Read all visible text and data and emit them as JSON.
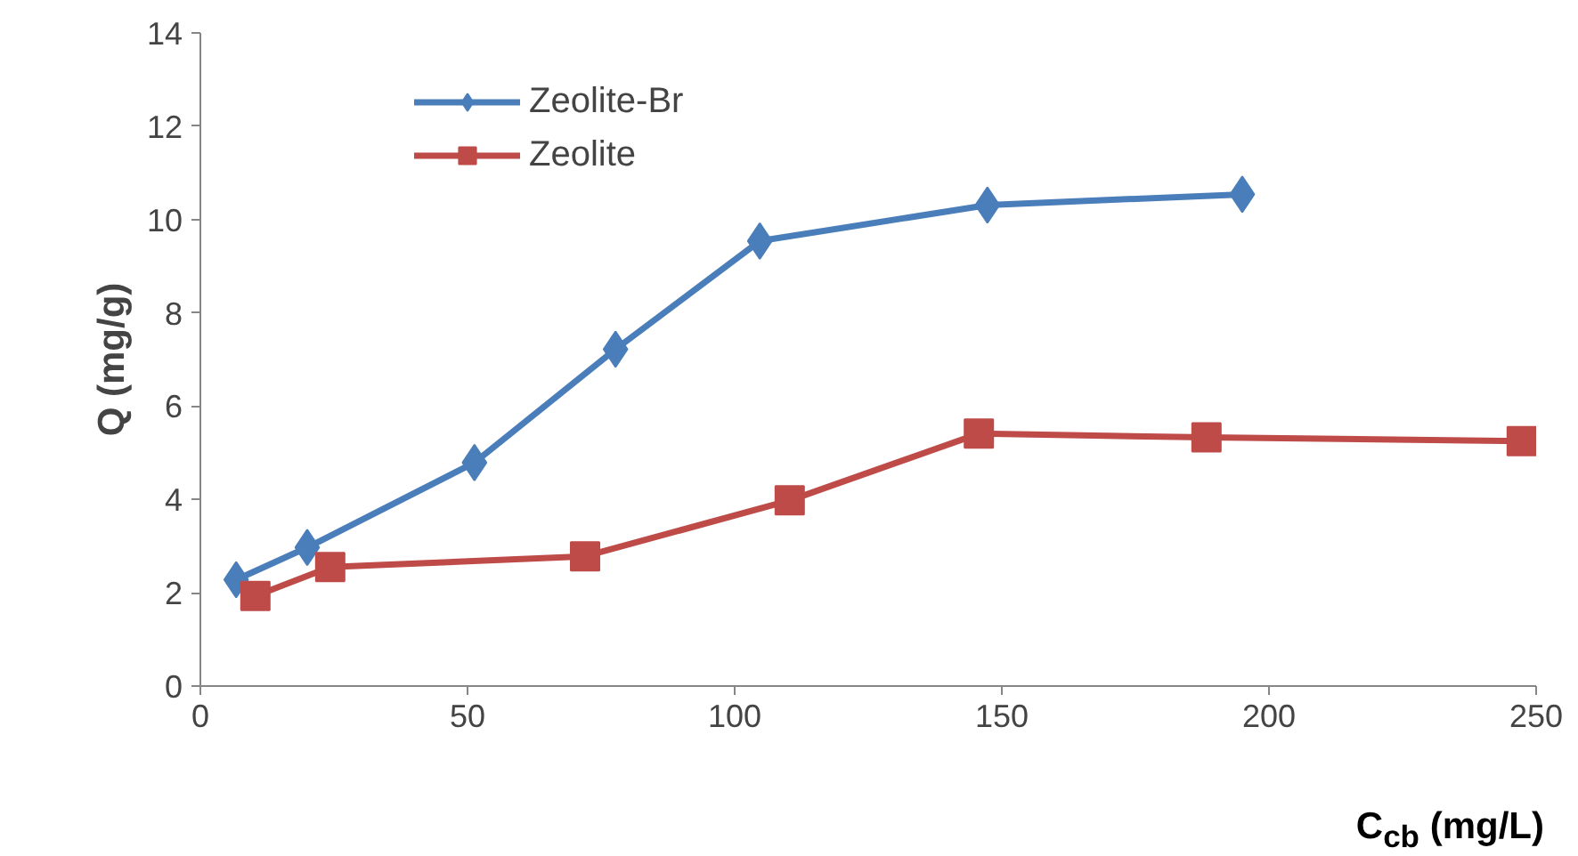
{
  "chart_data": {
    "type": "line",
    "xlabel": "C$_{cb}$ (mg/L)",
    "ylabel": "Q (mg/g)",
    "xlim": [
      0,
      250
    ],
    "ylim": [
      0,
      14
    ],
    "xticks": [
      0,
      50,
      100,
      150,
      200,
      250
    ],
    "yticks": [
      0,
      2,
      4,
      6,
      8,
      10,
      12,
      14
    ],
    "grid": false,
    "legend": "top left",
    "series": [
      {
        "name": "Zeolite-Br",
        "color": "#4a7ebb",
        "marker": "diamond",
        "x": [
          6.7,
          20,
          51.3,
          77.7,
          104.7,
          147.3,
          195
        ],
        "values": [
          2.28,
          2.97,
          4.79,
          7.22,
          9.54,
          10.31,
          10.54
        ]
      },
      {
        "name": "Zeolite",
        "color": "#be4b48",
        "marker": "square",
        "x": [
          10.3,
          24.3,
          72,
          110.3,
          145.7,
          188.3,
          247.3
        ],
        "values": [
          1.93,
          2.55,
          2.78,
          3.98,
          5.41,
          5.33,
          5.25
        ]
      }
    ]
  }
}
